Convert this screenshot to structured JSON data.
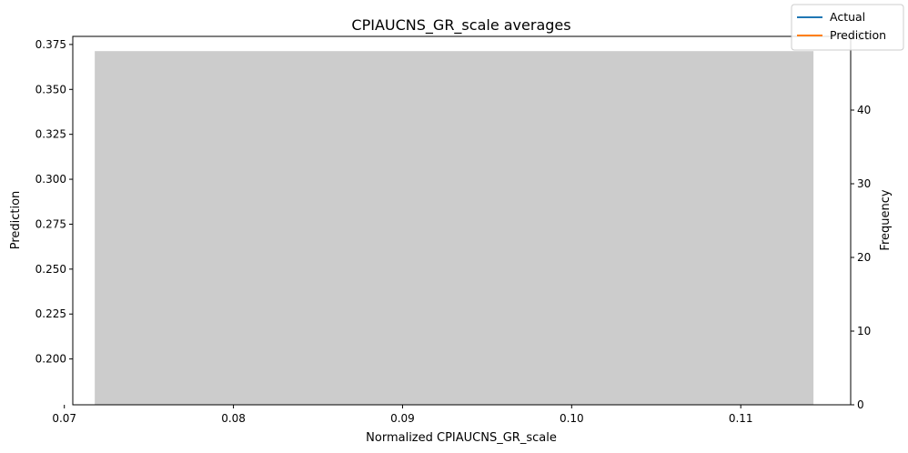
{
  "chart_data": {
    "type": "bar",
    "title": "CPIAUCNS_GR_scale averages",
    "xlabel": "Normalized CPIAUCNS_GR_scale",
    "ylabel": "Prediction",
    "y2label": "Frequency",
    "xlim": [
      0.0705,
      0.1165
    ],
    "ylim": [
      0.1745,
      0.3795
    ],
    "y2lim": [
      0,
      50
    ],
    "x_ticks": [
      {
        "value": 0.07,
        "label": "0.07"
      },
      {
        "value": 0.08,
        "label": "0.08"
      },
      {
        "value": 0.09,
        "label": "0.09"
      },
      {
        "value": 0.1,
        "label": "0.10"
      },
      {
        "value": 0.11,
        "label": "0.11"
      }
    ],
    "y_ticks": [
      {
        "value": 0.2,
        "label": "0.200"
      },
      {
        "value": 0.225,
        "label": "0.225"
      },
      {
        "value": 0.25,
        "label": "0.250"
      },
      {
        "value": 0.275,
        "label": "0.275"
      },
      {
        "value": 0.3,
        "label": "0.300"
      },
      {
        "value": 0.325,
        "label": "0.325"
      },
      {
        "value": 0.35,
        "label": "0.350"
      },
      {
        "value": 0.375,
        "label": "0.375"
      }
    ],
    "y2_ticks": [
      {
        "value": 0,
        "label": "0"
      },
      {
        "value": 10,
        "label": "10"
      },
      {
        "value": 20,
        "label": "20"
      },
      {
        "value": 30,
        "label": "30"
      },
      {
        "value": 40,
        "label": "40"
      },
      {
        "value": 50,
        "label": "50"
      }
    ],
    "histogram": [
      {
        "x_start": 0.0718,
        "x_end": 0.1143,
        "count": 48,
        "color": "#cccccc"
      }
    ],
    "series": [
      {
        "name": "Actual",
        "color": "#1f77b4",
        "values": []
      },
      {
        "name": "Prediction",
        "color": "#ff7f0e",
        "values": []
      }
    ],
    "legend": {
      "position": "top-right"
    },
    "grid": false
  }
}
